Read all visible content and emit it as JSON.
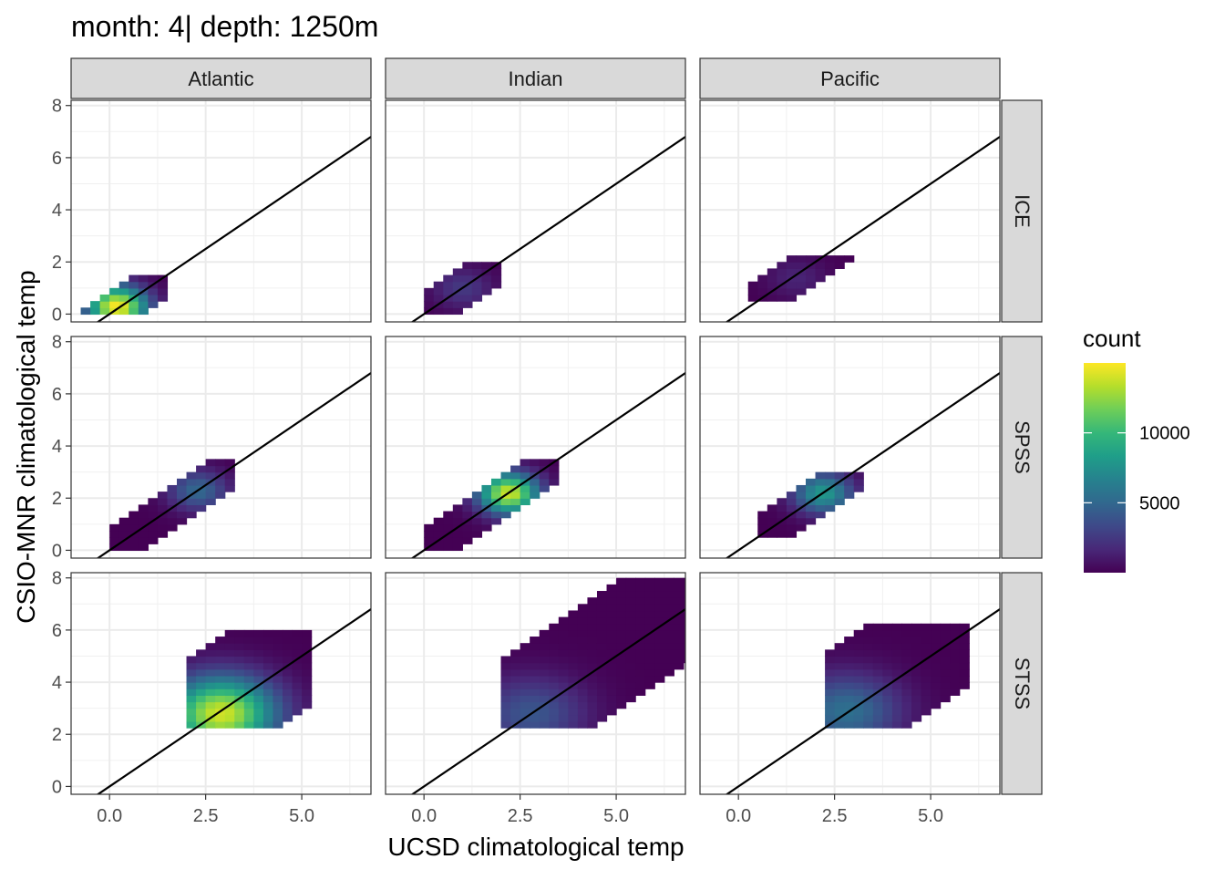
{
  "chart_data": {
    "type": "heatmap",
    "title": "month: 4| depth: 1250m",
    "xlabel": "UCSD climatological temp",
    "ylabel": "CSIO-MNR climatological temp",
    "xlim": [
      -1.0,
      6.8
    ],
    "ylim": [
      -0.3,
      8.2
    ],
    "x_ticks": [
      0.0,
      2.5,
      5.0
    ],
    "x_tick_labels": [
      "0.0",
      "2.5",
      "5.0"
    ],
    "y_ticks": [
      0,
      2,
      4,
      6,
      8
    ],
    "y_tick_labels": [
      "0",
      "2",
      "4",
      "6",
      "8"
    ],
    "reference_line": {
      "intercept": 0,
      "slope": 1
    },
    "grid": true,
    "bin_size": 0.25,
    "columns": [
      "Atlantic",
      "Indian",
      "Pacific"
    ],
    "rows": [
      "ICE",
      "SPSS",
      "STSS"
    ],
    "legend": {
      "title": "count",
      "placement": "right",
      "range": [
        0,
        15000
      ],
      "ticks": [
        5000,
        10000
      ],
      "tick_labels": [
        "5000",
        "10000"
      ],
      "colormap": [
        "#440154",
        "#482878",
        "#3e4989",
        "#31688e",
        "#26828e",
        "#1f9e89",
        "#35b779",
        "#6ece58",
        "#b5de2b",
        "#fde725"
      ]
    },
    "panels": [
      {
        "column": "Atlantic",
        "row": "ICE",
        "max_count": 15000,
        "x_range": [
          -1.0,
          1.5
        ],
        "y_range": [
          0.0,
          1.5
        ],
        "peak": [
          0.2,
          0.3
        ]
      },
      {
        "column": "Indian",
        "row": "ICE",
        "max_count": 2500,
        "x_range": [
          0.0,
          2.0
        ],
        "y_range": [
          0.0,
          2.0
        ],
        "peak": [
          1.0,
          1.0
        ]
      },
      {
        "column": "Pacific",
        "row": "ICE",
        "max_count": 1500,
        "x_range": [
          0.4,
          2.9
        ],
        "y_range": [
          0.5,
          2.2
        ],
        "peak": [
          1.5,
          1.4
        ]
      },
      {
        "column": "Atlantic",
        "row": "SPSS",
        "max_count": 5000,
        "x_range": [
          0.0,
          3.2
        ],
        "y_range": [
          0.0,
          3.4
        ],
        "peak": [
          2.3,
          2.3
        ]
      },
      {
        "column": "Indian",
        "row": "SPSS",
        "max_count": 14000,
        "x_range": [
          0.0,
          3.3
        ],
        "y_range": [
          0.0,
          3.4
        ],
        "peak": [
          2.2,
          2.2
        ]
      },
      {
        "column": "Pacific",
        "row": "SPSS",
        "max_count": 8000,
        "x_range": [
          0.6,
          3.1
        ],
        "y_range": [
          0.5,
          3.0
        ],
        "peak": [
          2.2,
          2.2
        ]
      },
      {
        "column": "Atlantic",
        "row": "STSS",
        "max_count": 14000,
        "x_range": [
          2.2,
          5.2
        ],
        "y_range": [
          2.3,
          5.8
        ],
        "peak": [
          2.9,
          2.8
        ]
      },
      {
        "column": "Indian",
        "row": "STSS",
        "max_count": 4000,
        "x_range": [
          2.2,
          6.8
        ],
        "y_range": [
          2.3,
          7.9
        ],
        "peak": [
          2.8,
          2.8
        ]
      },
      {
        "column": "Pacific",
        "row": "STSS",
        "max_count": 5500,
        "x_range": [
          2.3,
          5.8
        ],
        "y_range": [
          2.3,
          6.2
        ],
        "peak": [
          2.8,
          2.9
        ]
      }
    ]
  }
}
